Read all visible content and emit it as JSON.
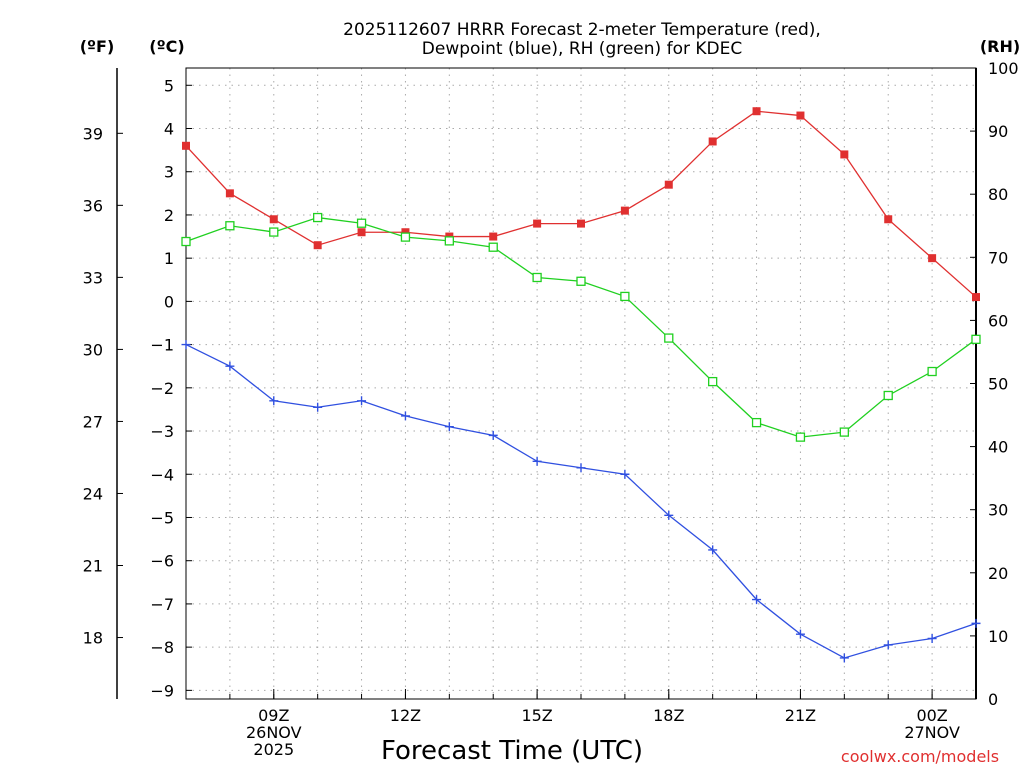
{
  "chart_data": {
    "type": "line",
    "title": "2025112607 HRRR Forecast 2-meter Temperature (red),",
    "title_line2": "Dewpoint (blue), RH (green) for KDEC",
    "xlabel": "Forecast Time (UTC)",
    "left_unit_f": "(ºF)",
    "left_unit_c": "(ºC)",
    "right_unit": "(RH)",
    "credit": "coolwx.com/models",
    "x": [
      7,
      8,
      9,
      10,
      11,
      12,
      13,
      14,
      15,
      16,
      17,
      18,
      19,
      20,
      21,
      22,
      23,
      24,
      25
    ],
    "xlim": [
      7,
      25
    ],
    "ylim_c": [
      -9.2,
      5.4
    ],
    "ylim_rh": [
      0,
      100
    ],
    "c_ticks": [
      5,
      4,
      3,
      2,
      1,
      0,
      -1,
      -2,
      -3,
      -4,
      -5,
      -6,
      -7,
      -8,
      -9
    ],
    "c_tick_labels": [
      "5",
      "4",
      "3",
      "2",
      "1",
      "0",
      "−1",
      "−2",
      "−3",
      "−4",
      "−5",
      "−6",
      "−7",
      "−8",
      "−9"
    ],
    "f_ticks": [
      39,
      36,
      33,
      30,
      27,
      24,
      21,
      18
    ],
    "f_tick_labels": [
      "39",
      "36",
      "33",
      "30",
      "27",
      "24",
      "21",
      "18"
    ],
    "rh_ticks": [
      100,
      90,
      80,
      70,
      60,
      50,
      40,
      30,
      20,
      10,
      0
    ],
    "rh_tick_labels": [
      "100",
      "90",
      "80",
      "70",
      "60",
      "50",
      "40",
      "30",
      "20",
      "10",
      "0"
    ],
    "x_ticks": [
      {
        "x": 9,
        "lines": [
          "09Z",
          "26NOV",
          "2025"
        ]
      },
      {
        "x": 12,
        "lines": [
          "12Z"
        ]
      },
      {
        "x": 15,
        "lines": [
          "15Z"
        ]
      },
      {
        "x": 18,
        "lines": [
          "18Z"
        ]
      },
      {
        "x": 21,
        "lines": [
          "21Z"
        ]
      },
      {
        "x": 24,
        "lines": [
          "00Z",
          "27NOV"
        ]
      }
    ],
    "series": [
      {
        "name": "Temperature",
        "unit": "C",
        "color": "#e03030",
        "marker": "filled-square",
        "values": [
          3.6,
          2.5,
          1.9,
          1.3,
          1.6,
          1.6,
          1.5,
          1.5,
          1.8,
          1.8,
          2.1,
          2.7,
          3.7,
          4.4,
          4.3,
          3.4,
          1.9,
          1.0,
          0.1
        ]
      },
      {
        "name": "Dewpoint",
        "unit": "C",
        "color": "#3050e0",
        "marker": "plus",
        "values": [
          -1.0,
          -1.5,
          -2.3,
          -2.45,
          -2.3,
          -2.65,
          -2.9,
          -3.1,
          -3.7,
          -3.85,
          -4.0,
          -4.95,
          -5.75,
          -6.9,
          -7.7,
          -8.25,
          -7.95,
          -7.8,
          -7.45
        ]
      },
      {
        "name": "RH",
        "unit": "%",
        "color": "#20d020",
        "marker": "open-square",
        "values": [
          72.5,
          75.0,
          74.0,
          76.3,
          75.4,
          73.2,
          72.6,
          71.6,
          66.8,
          66.2,
          63.8,
          57.2,
          50.3,
          43.8,
          41.5,
          42.3,
          48.1,
          51.9,
          57.0
        ]
      }
    ]
  }
}
